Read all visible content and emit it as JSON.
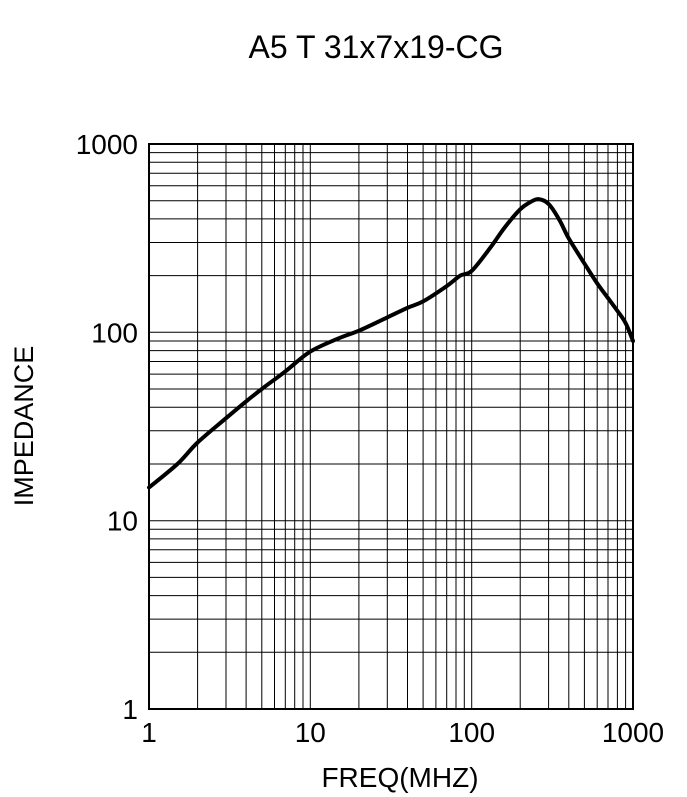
{
  "title": "A5 T 31x7x19-CG",
  "chart_data": {
    "type": "line",
    "title": "A5 T 31x7x19-CG",
    "xlabel": "FREQ(MHZ)",
    "ylabel": "IMPEDANCE",
    "x_scale": "log",
    "y_scale": "log",
    "xlim": [
      1,
      1000
    ],
    "ylim": [
      1,
      1000
    ],
    "x_ticks": [
      "1",
      "10",
      "100",
      "1000"
    ],
    "y_ticks": [
      "1",
      "10",
      "100",
      "1000"
    ],
    "grid": "log minor gridlines on both axes",
    "legend": "none",
    "line_color": "#000000",
    "background_color": "#ffffff",
    "series": [
      {
        "name": "impedance-vs-frequency",
        "x": [
          1,
          1.5,
          2,
          3,
          4,
          5,
          7,
          10,
          15,
          20,
          30,
          40,
          50,
          70,
          85,
          100,
          130,
          160,
          200,
          230,
          260,
          300,
          350,
          400,
          500,
          600,
          700,
          800,
          900,
          1000
        ],
        "y": [
          15,
          20,
          26,
          35,
          43,
          50,
          62,
          79,
          93,
          102,
          120,
          135,
          146,
          176,
          200,
          212,
          280,
          360,
          450,
          490,
          510,
          480,
          395,
          315,
          232,
          182,
          152,
          130,
          112,
          90
        ]
      }
    ]
  }
}
